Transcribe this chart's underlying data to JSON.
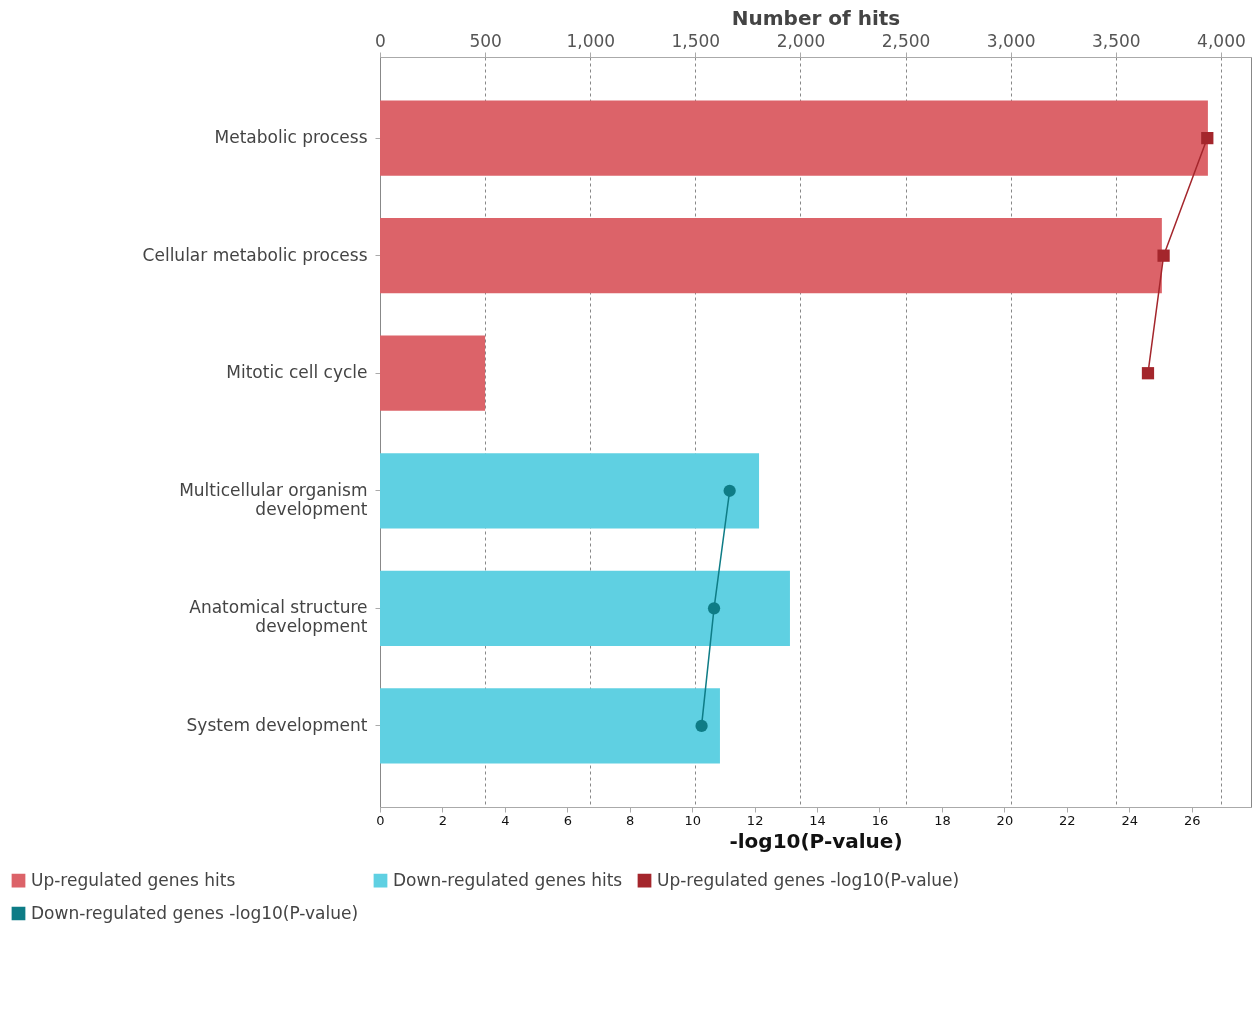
{
  "chart_data": {
    "type": "bar",
    "orientation": "horizontal",
    "x2label": "Number of hits",
    "xlabel": "-log10(P-value)",
    "categories": [
      "Metabolic process",
      "Cellular metabolic process",
      "Mitotic cell cycle",
      "Multicellular organism development",
      "Anatomical structure development",
      "System development"
    ],
    "series": [
      {
        "name": "Up-regulated genes hits",
        "axis": "x2",
        "color": "#dc6369",
        "values": [
          3938,
          3719,
          500,
          null,
          null,
          null
        ]
      },
      {
        "name": "Down-regulated genes hits",
        "axis": "x2",
        "color": "#5fd0e2",
        "values": [
          null,
          null,
          null,
          1803,
          1950,
          1617
        ]
      },
      {
        "name": "Up-regulated genes -log10(P-value)",
        "type": "line",
        "marker": "square",
        "color": "#a4262c",
        "values": [
          26.5,
          25.1,
          24.6,
          null,
          null,
          null
        ]
      },
      {
        "name": "Down-regulated genes -log10(P-value)",
        "type": "line",
        "marker": "circle",
        "color": "#0e7c86",
        "values": [
          null,
          null,
          null,
          11.2,
          10.7,
          10.3
        ]
      }
    ],
    "xlim": [
      0,
      27.9
    ],
    "xticks": [
      0,
      2,
      4,
      6,
      8,
      10,
      12,
      14,
      16,
      18,
      20,
      22,
      24,
      26
    ],
    "x2lim": [
      0,
      4143
    ],
    "x2ticks": [
      0,
      500,
      {
        "value": 1000,
        "label": "1,000"
      },
      {
        "value": 1500,
        "label": "1,500"
      },
      {
        "value": 2000,
        "label": "2,000"
      },
      {
        "value": 2500,
        "label": "2,500"
      },
      {
        "value": 3000,
        "label": "3,000"
      },
      {
        "value": 3500,
        "label": "3,500"
      },
      {
        "value": 4000,
        "label": "4,000"
      }
    ],
    "grid": "x",
    "legend": "bottom",
    "line_style": "solid"
  }
}
